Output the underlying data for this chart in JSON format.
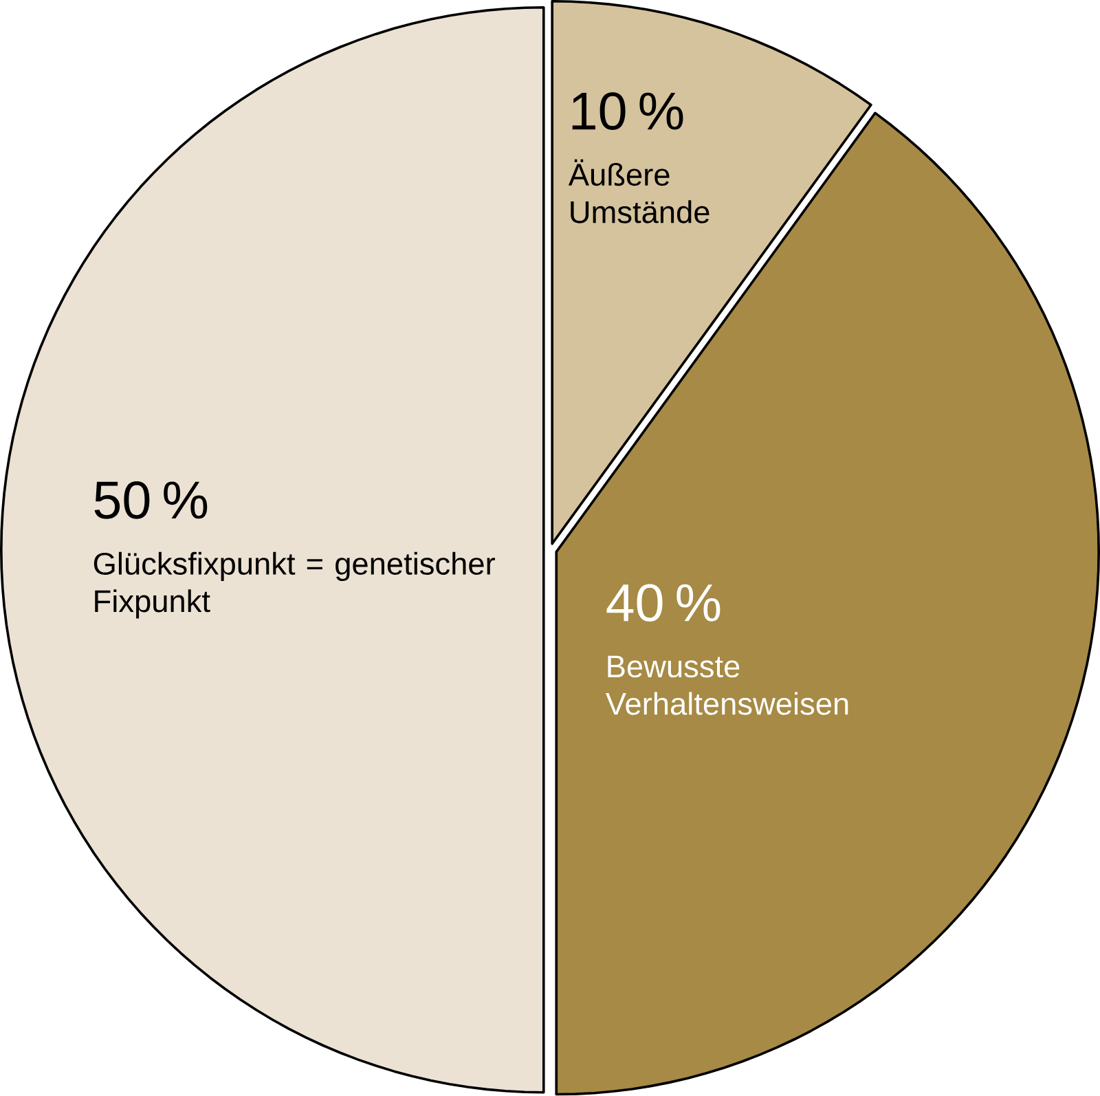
{
  "chart_data": {
    "type": "pie",
    "categories": [
      "Äußere Umstände",
      "Bewusste Verhaltensweisen",
      "Glücksfixpunkt = genetischer Fixpunkt"
    ],
    "values": [
      10,
      40,
      50
    ],
    "value_labels": [
      "10 %",
      "40 %",
      "50 %"
    ],
    "colors": [
      "#d5c39d",
      "#a68a45",
      "#ebe2d3"
    ],
    "legend": false
  }
}
